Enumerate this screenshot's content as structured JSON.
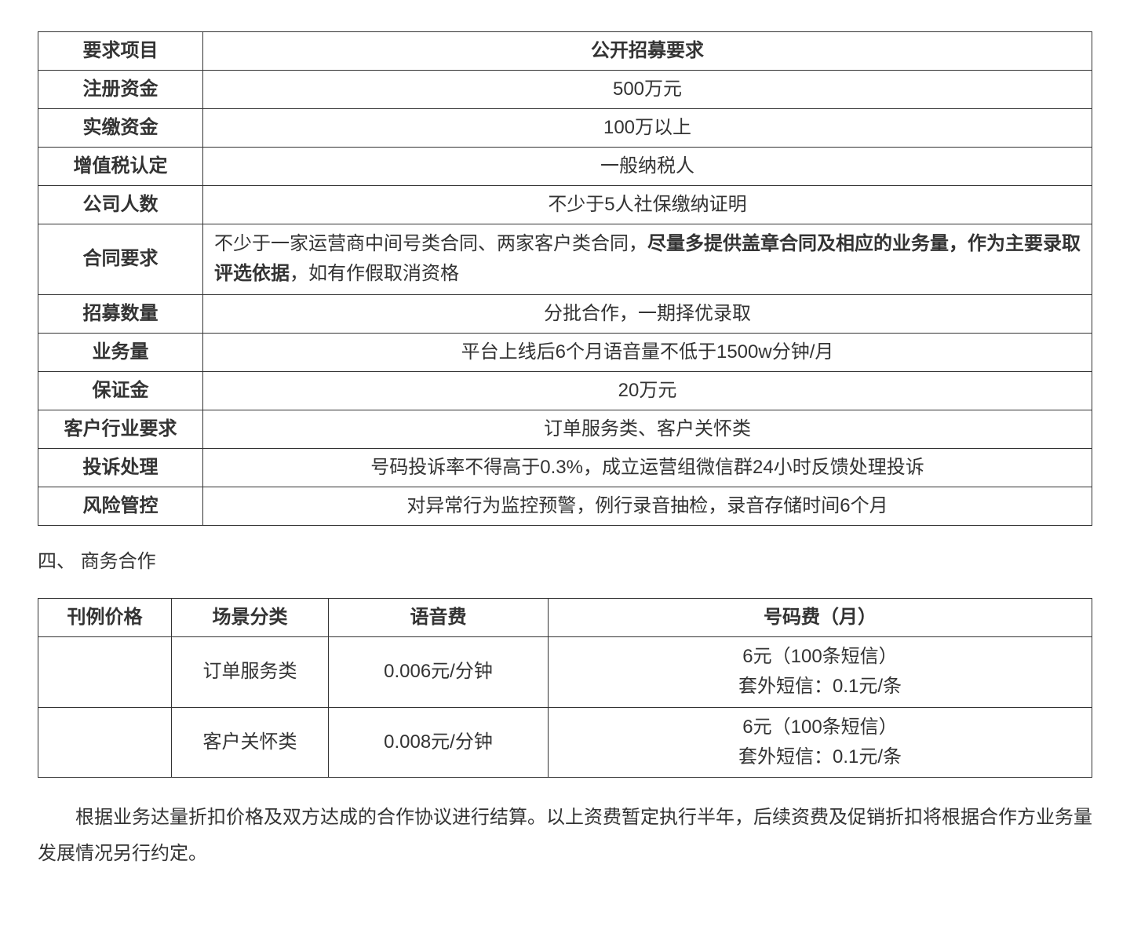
{
  "table1": {
    "header": {
      "label": "要求项目",
      "value": "公开招募要求"
    },
    "rows": [
      {
        "label": "注册资金",
        "value": "500万元"
      },
      {
        "label": "实缴资金",
        "value": "100万以上"
      },
      {
        "label": "增值税认定",
        "value": "一般纳税人"
      },
      {
        "label": "公司人数",
        "value": "不少于5人社保缴纳证明"
      }
    ],
    "contract": {
      "label": "合同要求",
      "pre": "不少于一家运营商中间号类合同、两家客户类合同，",
      "bold": "尽量多提供盖章合同及相应的业务量，作为主要录取评选依据",
      "post": "，如有作假取消资格"
    },
    "rows2": [
      {
        "label": "招募数量",
        "value": "分批合作，一期择优录取"
      },
      {
        "label": "业务量",
        "value": "平台上线后6个月语音量不低于1500w分钟/月"
      },
      {
        "label": "保证金",
        "value": "20万元"
      },
      {
        "label": "客户行业要求",
        "value": "订单服务类、客户关怀类"
      },
      {
        "label": "投诉处理",
        "value": "号码投诉率不得高于0.3%，成立运营组微信群24小时反馈处理投诉"
      },
      {
        "label": "风险管控",
        "value": "对异常行为监控预警，例行录音抽检，录音存储时间6个月"
      }
    ]
  },
  "section_heading": "四、 商务合作",
  "table2": {
    "headers": {
      "c1": "刊例价格",
      "c2": "场景分类",
      "c3": "语音费",
      "c4": "号码费（月）"
    },
    "rows": [
      {
        "c1": "",
        "c2": "订单服务类",
        "c3": "0.006元/分钟",
        "c4_line1": "6元（100条短信）",
        "c4_line2": "套外短信：0.1元/条"
      },
      {
        "c1": "",
        "c2": "客户关怀类",
        "c3": "0.008元/分钟",
        "c4_line1": "6元（100条短信）",
        "c4_line2": "套外短信：0.1元/条"
      }
    ]
  },
  "paragraph": "根据业务达量折扣价格及双方达成的合作协议进行结算。以上资费暂定执行半年，后续资费及促销折扣将根据合作方业务量发展情况另行约定。",
  "style": {
    "body_font_size": 24,
    "text_color": "#333333",
    "border_color": "#333333",
    "background": "#ffffff",
    "t1_label_width": 210,
    "t2_col_widths": [
      170,
      200,
      280
    ]
  }
}
